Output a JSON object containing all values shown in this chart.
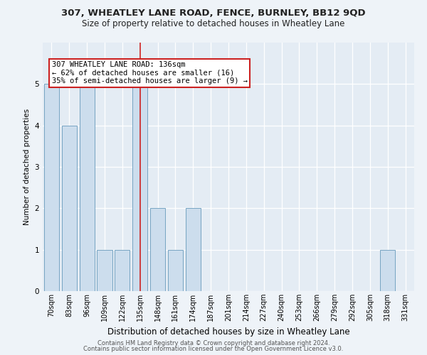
{
  "title1": "307, WHEATLEY LANE ROAD, FENCE, BURNLEY, BB12 9QD",
  "title2": "Size of property relative to detached houses in Wheatley Lane",
  "xlabel": "Distribution of detached houses by size in Wheatley Lane",
  "ylabel": "Number of detached properties",
  "categories": [
    "70sqm",
    "83sqm",
    "96sqm",
    "109sqm",
    "122sqm",
    "135sqm",
    "148sqm",
    "161sqm",
    "174sqm",
    "187sqm",
    "201sqm",
    "214sqm",
    "227sqm",
    "240sqm",
    "253sqm",
    "266sqm",
    "279sqm",
    "292sqm",
    "305sqm",
    "318sqm",
    "331sqm"
  ],
  "values": [
    5,
    4,
    5,
    1,
    1,
    5,
    2,
    1,
    2,
    0,
    0,
    0,
    0,
    0,
    0,
    0,
    0,
    0,
    0,
    1,
    0
  ],
  "bar_color": "#ccdded",
  "bar_edge_color": "#6699bb",
  "highlight_index": 5,
  "highlight_line_color": "#cc2222",
  "annotation_text": "307 WHEATLEY LANE ROAD: 136sqm\n← 62% of detached houses are smaller (16)\n35% of semi-detached houses are larger (9) →",
  "annotation_box_color": "white",
  "annotation_box_edge_color": "#cc2222",
  "ylim": [
    0,
    6
  ],
  "yticks": [
    0,
    1,
    2,
    3,
    4,
    5,
    6
  ],
  "footer1": "Contains HM Land Registry data © Crown copyright and database right 2024.",
  "footer2": "Contains public sector information licensed under the Open Government Licence v3.0.",
  "bg_color": "#eef3f8",
  "plot_bg_color": "#e4ecf4",
  "grid_color": "#ffffff",
  "title1_fontsize": 9.5,
  "title2_fontsize": 8.5,
  "ylabel_fontsize": 7.5,
  "xlabel_fontsize": 8.5,
  "tick_fontsize": 7,
  "footer_fontsize": 6,
  "annot_fontsize": 7.5
}
